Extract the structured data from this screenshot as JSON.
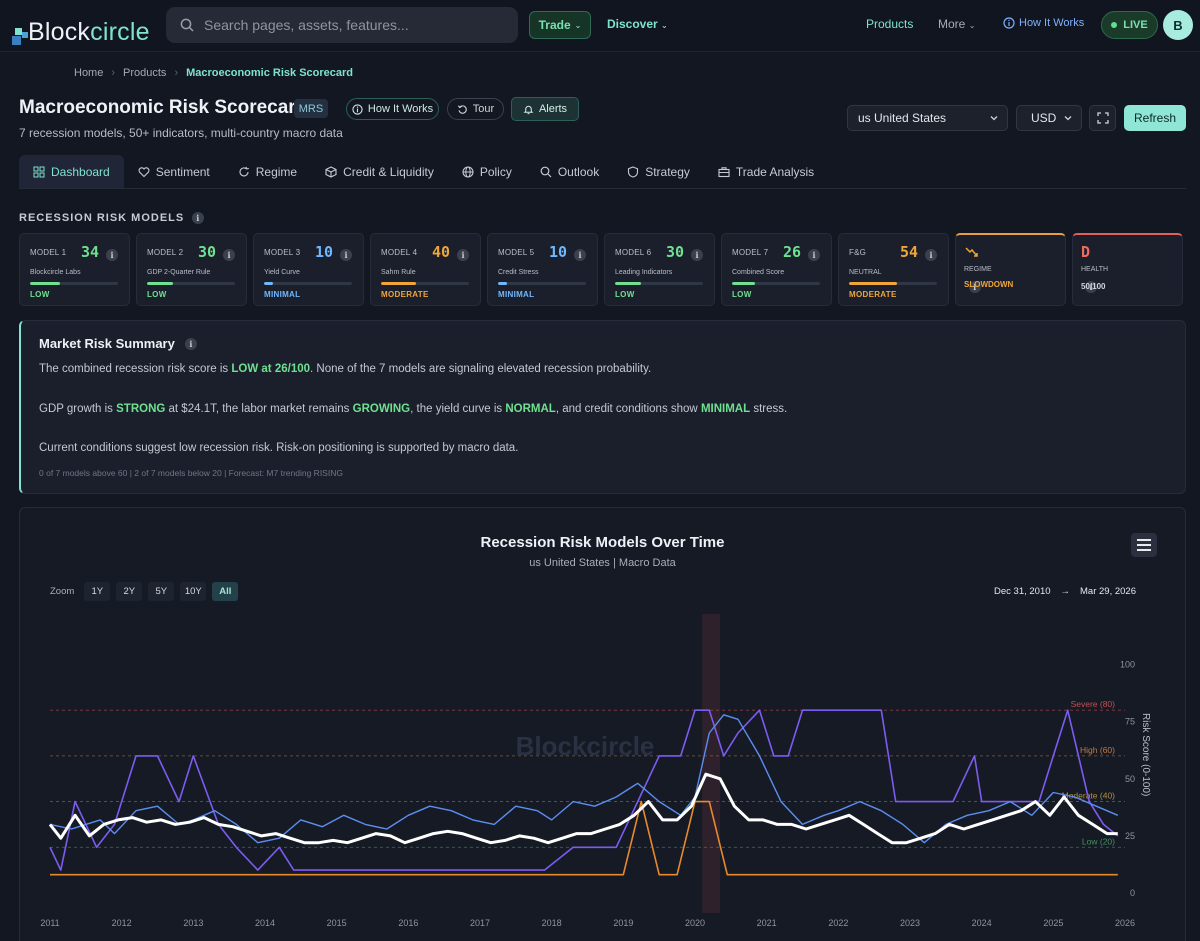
{
  "header": {
    "brand_prefix": "Block",
    "brand_suffix": "circle",
    "search_placeholder": "Search pages, assets, features...",
    "trade_label": "Trade",
    "discover_label": "Discover",
    "products_label": "Products",
    "more_label": "More",
    "how_it_works_label": "How It Works",
    "live_label": "LIVE",
    "avatar_initial": "B"
  },
  "breadcrumb": [
    "Home",
    "Products",
    "Macroeconomic Risk Scorecard"
  ],
  "page": {
    "title": "Macroeconomic Risk Scorecard",
    "badge": "MRS",
    "how_it_works": "How It Works",
    "tour": "Tour",
    "alerts": "Alerts",
    "subtitle": "7 recession models, 50+ indicators, multi-country macro data",
    "country": "us United States",
    "currency": "USD",
    "refresh": "Refresh"
  },
  "tabs": [
    "Dashboard",
    "Sentiment",
    "Regime",
    "Credit & Liquidity",
    "Policy",
    "Outlook",
    "Strategy",
    "Trade Analysis"
  ],
  "models_section_title": "RECESSION RISK MODELS",
  "models": [
    {
      "label": "MODEL 1",
      "value": "34",
      "name": "Blockcircle Labs",
      "status": "LOW",
      "fill": 0.34,
      "color": "#6fe08f"
    },
    {
      "label": "MODEL 2",
      "value": "30",
      "name": "GDP 2-Quarter Rule",
      "status": "LOW",
      "fill": 0.3,
      "color": "#6fe08f"
    },
    {
      "label": "MODEL 3",
      "value": "10",
      "name": "Yield Curve",
      "status": "MINIMAL",
      "fill": 0.1,
      "color": "#6fb8ff"
    },
    {
      "label": "MODEL 4",
      "value": "40",
      "name": "Sahm Rule",
      "status": "MODERATE",
      "fill": 0.4,
      "color": "#f0a53a"
    },
    {
      "label": "MODEL 5",
      "value": "10",
      "name": "Credit Stress",
      "status": "MINIMAL",
      "fill": 0.1,
      "color": "#6fb8ff"
    },
    {
      "label": "MODEL 6",
      "value": "30",
      "name": "Leading Indicators",
      "status": "LOW",
      "fill": 0.3,
      "color": "#6fe08f"
    },
    {
      "label": "MODEL 7",
      "value": "26",
      "name": "Combined Score",
      "status": "LOW",
      "fill": 0.26,
      "color": "#6fe08f"
    },
    {
      "label": "F&G",
      "value": "54",
      "name": "NEUTRAL",
      "status": "MODERATE",
      "fill": 0.54,
      "color": "#f0a53a"
    }
  ],
  "regime": {
    "label": "REGIME",
    "status": "SLOWDOWN"
  },
  "health": {
    "grade": "D",
    "label": "HEALTH",
    "score": "50/100"
  },
  "summary": {
    "title": "Market Risk Summary",
    "p1_a": "The combined recession risk score is ",
    "p1_b": "LOW at 26/100",
    "p1_c": ". None of the 7 models are signaling elevated recession probability.",
    "p2_a": "GDP growth is ",
    "p2_b": "STRONG",
    "p2_c": " at $24.1T, the labor market remains ",
    "p2_d": "GROWING",
    "p2_e": ", the yield curve is ",
    "p2_f": "NORMAL",
    "p2_g": ", and credit conditions show ",
    "p2_h": "MINIMAL",
    "p2_i": " stress.",
    "p3": "Current conditions suggest low recession risk. Risk-on positioning is supported by macro data.",
    "footer": "0 of 7 models above 60 | 2 of 7 models below 20 | Forecast: M7 trending RISING"
  },
  "chart_controls": {
    "zoom_label": "Zoom",
    "zoom_options": [
      "1Y",
      "2Y",
      "5Y",
      "10Y",
      "All"
    ],
    "range_from": "Dec 31, 2010",
    "range_arrow": "→",
    "range_to": "Mar 29, 2026",
    "watermark": "Blockcircle"
  },
  "chart_data": {
    "type": "line",
    "title": "Recession Risk Models Over Time",
    "subtitle": "us United States | Macro Data",
    "ylabel": "Risk Score (0-100)",
    "ylim": [
      0,
      100
    ],
    "yticks": [
      0,
      25,
      50,
      75,
      100
    ],
    "xticks": [
      "2011",
      "2012",
      "2013",
      "2014",
      "2015",
      "2016",
      "2017",
      "2018",
      "2019",
      "2020",
      "2021",
      "2022",
      "2023",
      "2024",
      "2025",
      "2026"
    ],
    "xlim": [
      2011,
      2026
    ],
    "thresholds": [
      {
        "label": "Severe (80)",
        "value": 80,
        "color": "#e05a5a"
      },
      {
        "label": "High (60)",
        "value": 60,
        "color": "#e08a4a"
      },
      {
        "label": "Moderate (40)",
        "value": 40,
        "color": "#c9a24a"
      },
      {
        "label": "Low (20)",
        "value": 20,
        "color": "#4aa86a"
      }
    ],
    "shaded_period": [
      2020.1,
      2020.35
    ],
    "series": [
      {
        "color": "#7c5cf0",
        "width": 1.6,
        "x": [
          2011,
          2011.15,
          2011.35,
          2011.65,
          2011.9,
          2012.2,
          2012.5,
          2012.8,
          2013.0,
          2013.35,
          2013.6,
          2013.9,
          2014.2,
          2014.4,
          2014.8,
          2015.2,
          2015.6,
          2016.0,
          2016.4,
          2016.8,
          2017.0,
          2017.5,
          2017.9,
          2018.3,
          2018.6,
          2018.9,
          2019.2,
          2019.5,
          2019.8,
          2020.0,
          2020.2,
          2020.4,
          2020.6,
          2020.9,
          2021.1,
          2021.3,
          2021.5,
          2021.8,
          2022.0,
          2022.4,
          2022.6,
          2022.8,
          2023.0,
          2023.3,
          2023.6,
          2023.9,
          2024.0,
          2024.3,
          2024.6,
          2024.8,
          2025.0,
          2025.2,
          2025.5,
          2025.7,
          2025.9
        ],
        "y": [
          20,
          10,
          40,
          20,
          30,
          60,
          60,
          40,
          60,
          30,
          20,
          10,
          20,
          10,
          10,
          10,
          10,
          10,
          10,
          10,
          10,
          10,
          10,
          20,
          20,
          20,
          40,
          60,
          60,
          80,
          80,
          60,
          70,
          80,
          60,
          60,
          80,
          80,
          80,
          80,
          80,
          40,
          40,
          40,
          40,
          60,
          40,
          40,
          40,
          40,
          60,
          80,
          40,
          30,
          25
        ]
      },
      {
        "color": "#5b8ef0",
        "width": 1.4,
        "x": [
          2011,
          2011.3,
          2011.7,
          2011.9,
          2012.2,
          2012.5,
          2012.8,
          2013.0,
          2013.3,
          2013.6,
          2013.9,
          2014.2,
          2014.5,
          2014.8,
          2015.1,
          2015.4,
          2015.7,
          2016.0,
          2016.3,
          2016.6,
          2016.9,
          2017.2,
          2017.5,
          2017.8,
          2018.0,
          2018.3,
          2018.6,
          2018.9,
          2019.2,
          2019.5,
          2019.8,
          2020.0,
          2020.2,
          2020.4,
          2020.6,
          2020.9,
          2021.2,
          2021.5,
          2021.8,
          2022.0,
          2022.3,
          2022.6,
          2022.9,
          2023.2,
          2023.5,
          2023.8,
          2024.1,
          2024.4,
          2024.7,
          2025.0,
          2025.3,
          2025.6,
          2025.9
        ],
        "y": [
          30,
          28,
          32,
          26,
          36,
          38,
          30,
          32,
          36,
          30,
          22,
          24,
          32,
          29,
          34,
          30,
          28,
          34,
          38,
          36,
          32,
          30,
          38,
          36,
          32,
          40,
          38,
          42,
          48,
          40,
          34,
          42,
          70,
          78,
          76,
          60,
          40,
          30,
          34,
          36,
          40,
          36,
          30,
          22,
          30,
          34,
          36,
          40,
          34,
          44,
          42,
          38,
          34
        ]
      },
      {
        "color": "#e8892e",
        "width": 1.6,
        "x": [
          2011,
          2018.5,
          2019.0,
          2019.25,
          2019.5,
          2019.75,
          2020.0,
          2020.2,
          2020.45,
          2020.7,
          2021.0,
          2022.0,
          2023.0,
          2024.0,
          2025.0,
          2025.9
        ],
        "y": [
          8,
          8,
          8,
          40,
          8,
          8,
          40,
          40,
          8,
          8,
          8,
          8,
          8,
          8,
          8,
          8
        ]
      },
      {
        "color": "#ffffff",
        "width": 3,
        "x": [
          2011,
          2011.15,
          2011.35,
          2011.55,
          2011.75,
          2011.95,
          2012.15,
          2012.35,
          2012.55,
          2012.75,
          2012.95,
          2013.15,
          2013.35,
          2013.55,
          2013.75,
          2013.95,
          2014.15,
          2014.35,
          2014.55,
          2014.75,
          2014.95,
          2015.15,
          2015.35,
          2015.55,
          2015.75,
          2015.95,
          2016.15,
          2016.35,
          2016.55,
          2016.75,
          2016.95,
          2017.15,
          2017.35,
          2017.55,
          2017.75,
          2017.95,
          2018.15,
          2018.35,
          2018.55,
          2018.75,
          2018.95,
          2019.15,
          2019.35,
          2019.55,
          2019.75,
          2019.95,
          2020.15,
          2020.35,
          2020.55,
          2020.75,
          2020.95,
          2021.15,
          2021.35,
          2021.55,
          2021.75,
          2021.95,
          2022.15,
          2022.35,
          2022.55,
          2022.75,
          2022.95,
          2023.15,
          2023.35,
          2023.55,
          2023.75,
          2023.95,
          2024.15,
          2024.35,
          2024.55,
          2024.75,
          2024.95,
          2025.15,
          2025.35,
          2025.55,
          2025.75,
          2025.9
        ],
        "y": [
          30,
          24,
          34,
          25,
          30,
          32,
          33,
          31,
          32,
          30,
          31,
          33,
          30,
          29,
          27,
          25,
          26,
          24,
          22,
          22,
          23,
          22,
          24,
          26,
          25,
          22,
          24,
          26,
          27,
          26,
          24,
          22,
          23,
          25,
          24,
          22,
          24,
          26,
          26,
          28,
          30,
          34,
          40,
          32,
          32,
          38,
          52,
          50,
          38,
          32,
          32,
          30,
          30,
          28,
          30,
          32,
          34,
          30,
          26,
          22,
          22,
          24,
          26,
          30,
          28,
          30,
          32,
          34,
          36,
          40,
          34,
          42,
          34,
          30,
          26,
          26
        ]
      }
    ]
  }
}
